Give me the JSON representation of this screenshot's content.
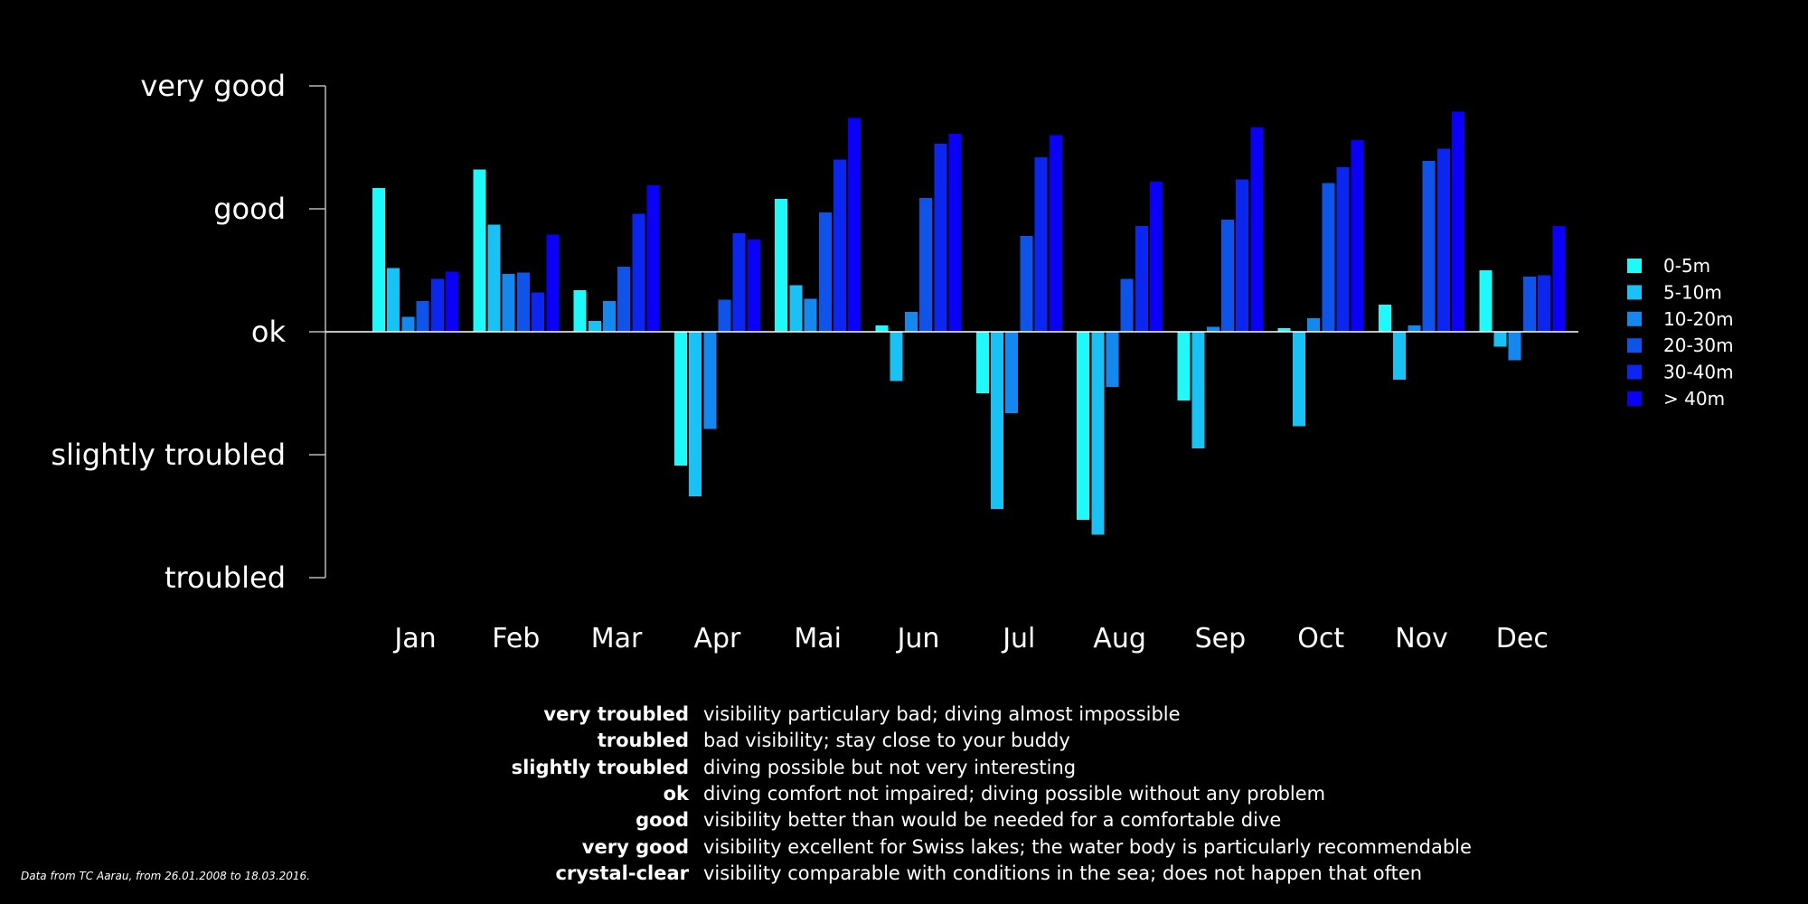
{
  "chart_data": {
    "type": "bar",
    "categories": [
      "Jan",
      "Feb",
      "Mar",
      "Apr",
      "Mai",
      "Jun",
      "Jul",
      "Aug",
      "Sep",
      "Oct",
      "Nov",
      "Dec"
    ],
    "yticks": [
      {
        "value": -2,
        "label": "troubled"
      },
      {
        "value": -1,
        "label": "slightly troubled"
      },
      {
        "value": 0,
        "label": "ok"
      },
      {
        "value": 1,
        "label": "good"
      },
      {
        "value": 2,
        "label": "very good"
      }
    ],
    "ylim": [
      -2,
      2
    ],
    "grid": false,
    "legend_position": "right",
    "series": [
      {
        "name": "0-5m",
        "color": "#1ef9f9",
        "values": [
          1.17,
          1.32,
          0.34,
          -1.09,
          1.08,
          0.05,
          -0.5,
          -1.53,
          -0.56,
          0.03,
          0.22,
          0.5
        ]
      },
      {
        "name": "5-10m",
        "color": "#19c2f4",
        "values": [
          0.52,
          0.87,
          0.09,
          -1.34,
          0.38,
          -0.4,
          -1.44,
          -1.65,
          -0.95,
          -0.77,
          -0.39,
          -0.12
        ]
      },
      {
        "name": "10-20m",
        "color": "#1389ef",
        "values": [
          0.12,
          0.47,
          0.25,
          -0.79,
          0.27,
          0.16,
          -0.66,
          -0.45,
          0.04,
          0.11,
          0.05,
          -0.23
        ]
      },
      {
        "name": "20-30m",
        "color": "#0e53ea",
        "values": [
          0.25,
          0.48,
          0.53,
          0.26,
          0.97,
          1.09,
          0.78,
          0.43,
          0.91,
          1.21,
          1.39,
          0.45
        ]
      },
      {
        "name": "30-40m",
        "color": "#0a26f0",
        "values": [
          0.43,
          0.32,
          0.96,
          0.8,
          1.4,
          1.53,
          1.42,
          0.86,
          1.24,
          1.34,
          1.49,
          0.46
        ]
      },
      {
        "name": "> 40m",
        "color": "#0a00fa",
        "values": [
          0.49,
          0.79,
          1.19,
          0.75,
          1.74,
          1.61,
          1.6,
          1.22,
          1.66,
          1.56,
          1.79,
          0.86
        ]
      }
    ]
  },
  "explanations": [
    {
      "term": "very troubled",
      "description": "visibility particulary bad; diving almost impossible"
    },
    {
      "term": "troubled",
      "description": "bad visibility; stay close to your buddy"
    },
    {
      "term": "slightly troubled",
      "description": "diving possible but not very interesting"
    },
    {
      "term": "ok",
      "description": "diving comfort not impaired; diving possible without any problem"
    },
    {
      "term": "good",
      "description": "visibility better than would be needed for a comfortable dive"
    },
    {
      "term": "very good",
      "description": "visibility excellent for Swiss lakes; the water body is particularly recommendable"
    },
    {
      "term": "crystal-clear",
      "description": "visibility comparable with conditions in the sea; does not happen that often"
    }
  ],
  "source_note": "Data from TC Aarau, from 26.01.2008 to 18.03.2016."
}
